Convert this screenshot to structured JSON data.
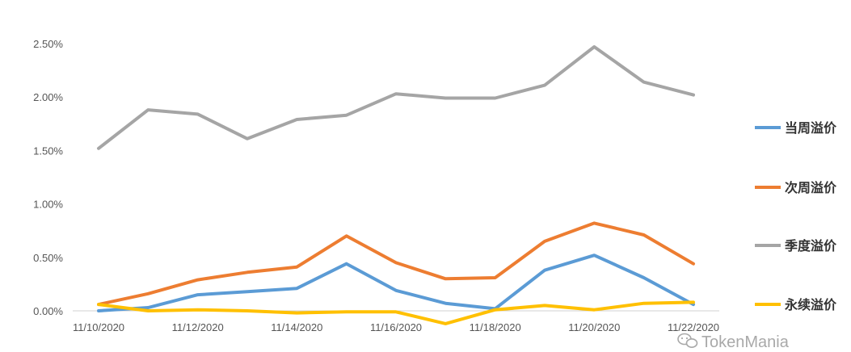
{
  "chart_data": {
    "type": "line",
    "x": [
      "11/10/2020",
      "11/11/2020",
      "11/12/2020",
      "11/13/2020",
      "11/14/2020",
      "11/15/2020",
      "11/16/2020",
      "11/17/2020",
      "11/18/2020",
      "11/19/2020",
      "11/20/2020",
      "11/21/2020",
      "11/22/2020"
    ],
    "x_tick_labels": [
      "11/10/2020",
      "11/12/2020",
      "11/14/2020",
      "11/16/2020",
      "11/18/2020",
      "11/20/2020",
      "11/22/2020"
    ],
    "y_tick_labels": [
      "0.00%",
      "0.50%",
      "1.00%",
      "1.50%",
      "2.00%",
      "2.50%"
    ],
    "ylim": [
      0,
      2.5
    ],
    "y_unit": "%",
    "grid": false,
    "legend_position": "right",
    "series": [
      {
        "name": "当周溢价",
        "color": "#5b9bd5",
        "values": [
          0.0,
          0.03,
          0.15,
          0.18,
          0.21,
          0.44,
          0.19,
          0.07,
          0.02,
          0.38,
          0.52,
          0.31,
          0.06
        ]
      },
      {
        "name": "次周溢价",
        "color": "#ed7d31",
        "values": [
          0.06,
          0.16,
          0.29,
          0.36,
          0.41,
          0.7,
          0.45,
          0.3,
          0.31,
          0.65,
          0.82,
          0.71,
          0.44
        ]
      },
      {
        "name": "季度溢价",
        "color": "#a5a5a5",
        "values": [
          1.52,
          1.88,
          1.84,
          1.61,
          1.79,
          1.83,
          2.03,
          1.99,
          1.99,
          2.11,
          2.47,
          2.14,
          2.02
        ]
      },
      {
        "name": "永续溢价",
        "color": "#ffc000",
        "values": [
          0.06,
          0.0,
          0.01,
          0.0,
          -0.02,
          -0.01,
          -0.01,
          -0.12,
          0.01,
          0.05,
          0.01,
          0.07,
          0.08
        ]
      }
    ]
  },
  "watermark": {
    "text": "TokenMania",
    "icon": "wechat-icon"
  }
}
